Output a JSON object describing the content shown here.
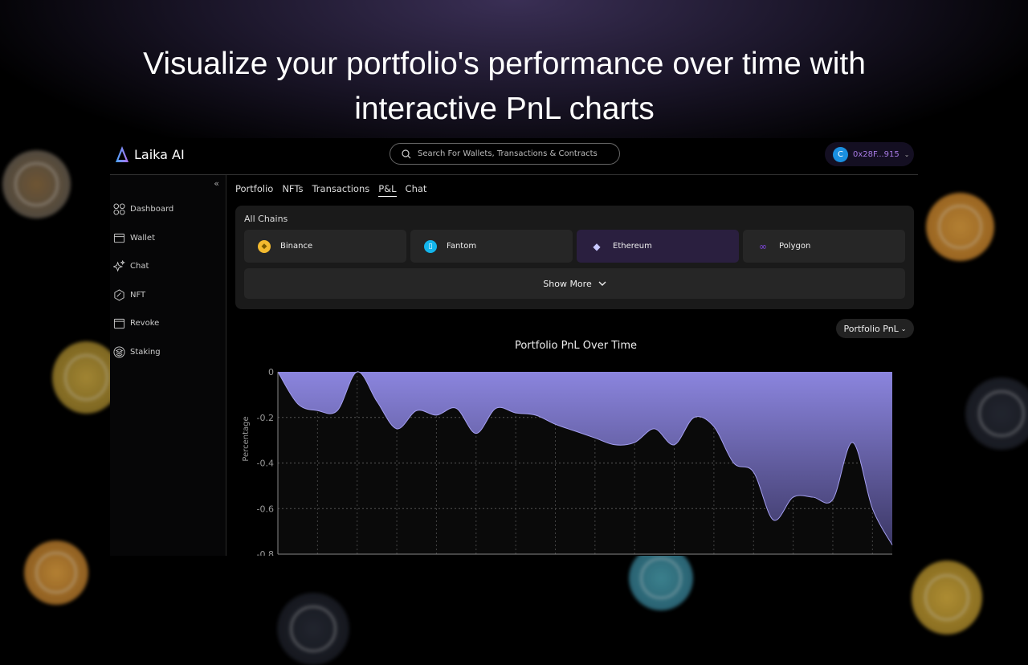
{
  "headline": {
    "line1": "Visualize your portfolio's performance over time with",
    "line2": "interactive PnL charts"
  },
  "app": {
    "brand": "Laika AI",
    "search_placeholder": "Search For Wallets, Transactions & Contracts",
    "wallet": {
      "avatar_letter": "C",
      "address": "0x28F...915"
    },
    "collapse_label": "«"
  },
  "sidebar": {
    "items": [
      {
        "label": "Dashboard",
        "icon": "grid-icon"
      },
      {
        "label": "Wallet",
        "icon": "wallet-icon"
      },
      {
        "label": "Chat",
        "icon": "sparkle-icon"
      },
      {
        "label": "NFT",
        "icon": "nft-icon"
      },
      {
        "label": "Revoke",
        "icon": "calendar-icon"
      },
      {
        "label": "Staking",
        "icon": "layers-icon"
      }
    ]
  },
  "tabs": [
    {
      "label": "Portfolio"
    },
    {
      "label": "NFTs"
    },
    {
      "label": "Transactions"
    },
    {
      "label": "P&L",
      "active": true
    },
    {
      "label": "Chat"
    }
  ],
  "chains": {
    "label": "All Chains",
    "items": [
      {
        "label": "Binance",
        "color": "#f3ba2f"
      },
      {
        "label": "Fantom",
        "color": "#13b5ec"
      },
      {
        "label": "Ethereum",
        "color": "#c8c8ff",
        "selected": true
      },
      {
        "label": "Polygon",
        "color": "#8247e5"
      }
    ],
    "show_more": "Show More"
  },
  "dropdown": {
    "value": "Portfolio PnL"
  },
  "colors": {
    "accent": "#8b85de",
    "wallet_text": "#a97be6",
    "selected_chip": "#2a1f3f"
  },
  "chart_data": {
    "type": "area",
    "title": "Portfolio PnL Over Time",
    "xlabel": "",
    "ylabel": "Percentage",
    "ylim": [
      -0.8,
      0
    ],
    "yticks": [
      "0",
      "-0.2",
      "-0.4",
      "-0.6",
      "-0.8"
    ],
    "grid": true,
    "values": [
      0,
      -0.14,
      -0.17,
      -0.17,
      0,
      -0.13,
      -0.25,
      -0.17,
      -0.19,
      -0.16,
      -0.27,
      -0.16,
      -0.18,
      -0.19,
      -0.23,
      -0.26,
      -0.29,
      -0.32,
      -0.31,
      -0.25,
      -0.32,
      -0.2,
      -0.24,
      -0.4,
      -0.44,
      -0.65,
      -0.55,
      -0.55,
      -0.56,
      -0.31,
      -0.6,
      -0.76
    ]
  }
}
